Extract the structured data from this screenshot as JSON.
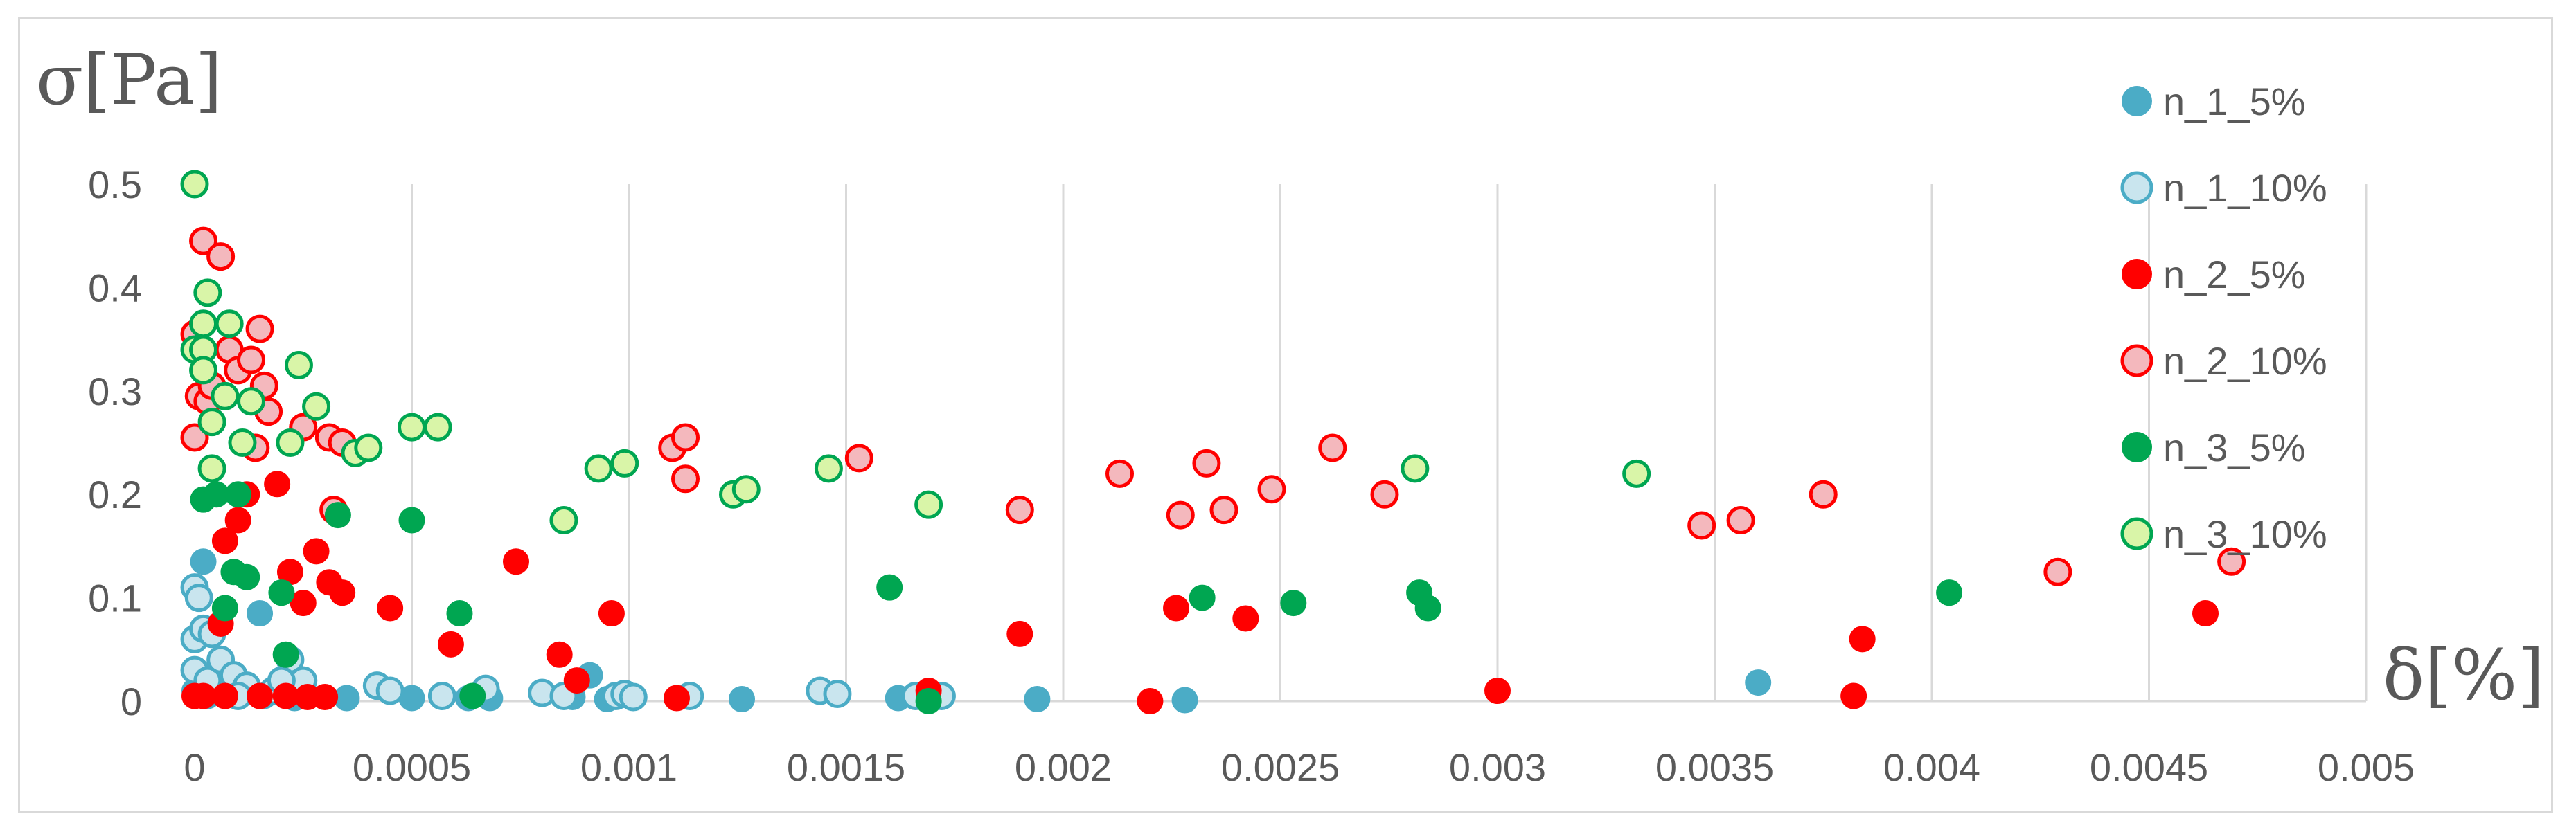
{
  "chart_data": {
    "type": "scatter",
    "xlabel": "δ[%]",
    "ylabel": "σ[Pa]",
    "xlim": [
      0,
      0.005
    ],
    "ylim": [
      0,
      0.5
    ],
    "x_ticks": [
      "0",
      "0.0005",
      "0.001",
      "0.0015",
      "0.002",
      "0.0025",
      "0.003",
      "0.0035",
      "0.004",
      "0.0045",
      "0.005"
    ],
    "y_ticks": [
      "0",
      "0.1",
      "0.2",
      "0.3",
      "0.4",
      "0.5"
    ],
    "grid": "vertical",
    "legend_position": "right",
    "series": [
      {
        "name": "n_1_5%",
        "style": "filled",
        "fill": "#4bacc6",
        "stroke": "#4bacc6",
        "points": [
          [
            0.0,
            0.01
          ],
          [
            2e-05,
            0.135
          ],
          [
            3e-05,
            0.005
          ],
          [
            0.00015,
            0.085
          ],
          [
            0.00016,
            0.005
          ],
          [
            0.00023,
            0.003
          ],
          [
            0.00035,
            0.003
          ],
          [
            0.0005,
            0.003
          ],
          [
            0.00063,
            0.003
          ],
          [
            0.00068,
            0.003
          ],
          [
            0.00087,
            0.004
          ],
          [
            0.00091,
            0.025
          ],
          [
            0.00095,
            0.002
          ],
          [
            0.00126,
            0.002
          ],
          [
            0.00162,
            0.003
          ],
          [
            0.00194,
            0.002
          ],
          [
            0.00228,
            0.001
          ],
          [
            0.0036,
            0.018
          ]
        ]
      },
      {
        "name": "n_1_10%",
        "style": "hollow",
        "fill": "#c9e5ee",
        "stroke": "#4bacc6",
        "points": [
          [
            0.0,
            0.11
          ],
          [
            1e-05,
            0.1
          ],
          [
            0.0,
            0.06
          ],
          [
            2e-05,
            0.07
          ],
          [
            4e-05,
            0.065
          ],
          [
            0.0,
            0.03
          ],
          [
            3e-05,
            0.02
          ],
          [
            6e-05,
            0.04
          ],
          [
            9e-05,
            0.025
          ],
          [
            0.00012,
            0.015
          ],
          [
            0.0001,
            0.005
          ],
          [
            0.00018,
            0.01
          ],
          [
            0.00022,
            0.04
          ],
          [
            0.00025,
            0.02
          ],
          [
            0.0002,
            0.02
          ],
          [
            0.00042,
            0.015
          ],
          [
            0.00045,
            0.01
          ],
          [
            0.00057,
            0.005
          ],
          [
            0.00067,
            0.012
          ],
          [
            0.0008,
            0.008
          ],
          [
            0.00085,
            0.005
          ],
          [
            0.00097,
            0.005
          ],
          [
            0.00099,
            0.007
          ],
          [
            0.00101,
            0.004
          ],
          [
            0.00114,
            0.005
          ],
          [
            0.00144,
            0.01
          ],
          [
            0.00148,
            0.007
          ],
          [
            0.00166,
            0.005
          ],
          [
            0.00172,
            0.005
          ]
        ]
      },
      {
        "name": "n_2_5%",
        "style": "filled",
        "fill": "#ff0000",
        "stroke": "#ff0000",
        "points": [
          [
            0.0,
            0.005
          ],
          [
            2e-05,
            0.005
          ],
          [
            6e-05,
            0.075
          ],
          [
            7e-05,
            0.155
          ],
          [
            0.0001,
            0.175
          ],
          [
            0.00012,
            0.2
          ],
          [
            0.00019,
            0.21
          ],
          [
            0.00021,
            0.005
          ],
          [
            0.00022,
            0.125
          ],
          [
            0.00025,
            0.095
          ],
          [
            0.00028,
            0.145
          ],
          [
            0.00031,
            0.115
          ],
          [
            0.00034,
            0.105
          ],
          [
            0.00045,
            0.09
          ],
          [
            0.00059,
            0.055
          ],
          [
            0.00074,
            0.135
          ],
          [
            0.00084,
            0.045
          ],
          [
            0.00088,
            0.02
          ],
          [
            0.00096,
            0.085
          ],
          [
            0.00111,
            0.003
          ],
          [
            0.00169,
            0.01
          ],
          [
            0.0019,
            0.065
          ],
          [
            0.0022,
            0.0
          ],
          [
            0.00226,
            0.09
          ],
          [
            0.00242,
            0.08
          ],
          [
            0.003,
            0.01
          ],
          [
            0.00382,
            0.005
          ],
          [
            0.00384,
            0.06
          ],
          [
            0.00463,
            0.085
          ],
          [
            7e-05,
            0.005
          ],
          [
            0.00015,
            0.005
          ],
          [
            0.00026,
            0.004
          ],
          [
            0.0003,
            0.004
          ]
        ]
      },
      {
        "name": "n_2_10%",
        "style": "hollow",
        "fill": "#f4b8bd",
        "stroke": "#ff0000",
        "points": [
          [
            0.0,
            0.355
          ],
          [
            2e-05,
            0.445
          ],
          [
            6e-05,
            0.43
          ],
          [
            1e-05,
            0.295
          ],
          [
            3e-05,
            0.29
          ],
          [
            0.0,
            0.255
          ],
          [
            4e-05,
            0.305
          ],
          [
            8e-05,
            0.34
          ],
          [
            0.0001,
            0.32
          ],
          [
            0.00013,
            0.33
          ],
          [
            0.00015,
            0.36
          ],
          [
            0.00016,
            0.305
          ],
          [
            0.00014,
            0.245
          ],
          [
            0.00017,
            0.28
          ],
          [
            0.00025,
            0.265
          ],
          [
            0.00031,
            0.255
          ],
          [
            0.00034,
            0.25
          ],
          [
            0.00032,
            0.185
          ],
          [
            0.0011,
            0.245
          ],
          [
            0.00113,
            0.255
          ],
          [
            0.00113,
            0.215
          ],
          [
            0.00153,
            0.235
          ],
          [
            0.0019,
            0.185
          ],
          [
            0.00213,
            0.22
          ],
          [
            0.00227,
            0.18
          ],
          [
            0.00233,
            0.23
          ],
          [
            0.00237,
            0.185
          ],
          [
            0.00248,
            0.205
          ],
          [
            0.00262,
            0.245
          ],
          [
            0.00274,
            0.2
          ],
          [
            0.00347,
            0.17
          ],
          [
            0.00356,
            0.175
          ],
          [
            0.00375,
            0.2
          ],
          [
            0.00429,
            0.125
          ],
          [
            0.00469,
            0.135
          ]
        ]
      },
      {
        "name": "n_3_5%",
        "style": "filled",
        "fill": "#00a651",
        "stroke": "#00a651",
        "points": [
          [
            2e-05,
            0.195
          ],
          [
            5e-05,
            0.2
          ],
          [
            7e-05,
            0.09
          ],
          [
            9e-05,
            0.125
          ],
          [
            0.0001,
            0.2
          ],
          [
            0.00012,
            0.12
          ],
          [
            0.0002,
            0.105
          ],
          [
            0.00021,
            0.045
          ],
          [
            0.00033,
            0.18
          ],
          [
            0.0005,
            0.175
          ],
          [
            0.00061,
            0.085
          ],
          [
            0.00064,
            0.005
          ],
          [
            0.0016,
            0.11
          ],
          [
            0.00169,
            0.0
          ],
          [
            0.00232,
            0.1
          ],
          [
            0.00253,
            0.095
          ],
          [
            0.00282,
            0.105
          ],
          [
            0.00284,
            0.09
          ],
          [
            0.00404,
            0.105
          ]
        ]
      },
      {
        "name": "n_3_10%",
        "style": "hollow",
        "fill": "#d9f5a8",
        "stroke": "#00a651",
        "points": [
          [
            0.0,
            0.5
          ],
          [
            0.0,
            0.34
          ],
          [
            2e-05,
            0.34
          ],
          [
            3e-05,
            0.395
          ],
          [
            2e-05,
            0.365
          ],
          [
            2e-05,
            0.32
          ],
          [
            4e-05,
            0.27
          ],
          [
            4e-05,
            0.225
          ],
          [
            7e-05,
            0.295
          ],
          [
            8e-05,
            0.365
          ],
          [
            0.00011,
            0.25
          ],
          [
            0.00013,
            0.29
          ],
          [
            0.00022,
            0.25
          ],
          [
            0.00024,
            0.325
          ],
          [
            0.00028,
            0.285
          ],
          [
            0.00037,
            0.24
          ],
          [
            0.0004,
            0.245
          ],
          [
            0.0005,
            0.265
          ],
          [
            0.00056,
            0.265
          ],
          [
            0.00085,
            0.175
          ],
          [
            0.00093,
            0.225
          ],
          [
            0.00099,
            0.23
          ],
          [
            0.00124,
            0.2
          ],
          [
            0.00127,
            0.205
          ],
          [
            0.00146,
            0.225
          ],
          [
            0.00169,
            0.19
          ],
          [
            0.00281,
            0.225
          ],
          [
            0.00332,
            0.22
          ]
        ]
      }
    ]
  }
}
